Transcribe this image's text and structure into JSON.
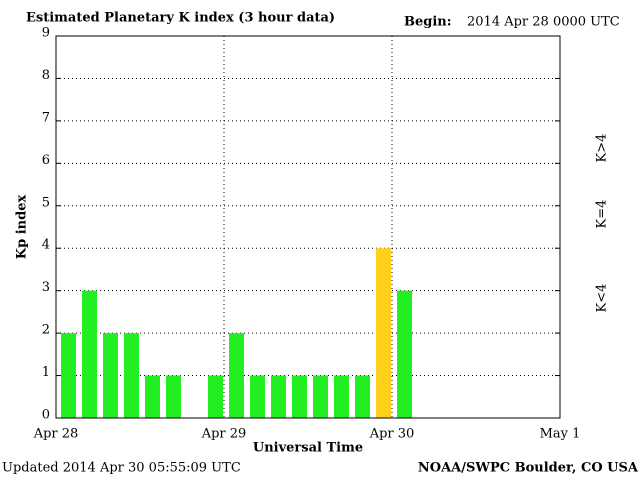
{
  "chart_data": {
    "type": "bar",
    "title": "Estimated Planetary K index (3 hour data)",
    "begin_label": "Begin:",
    "begin_value": "2014 Apr 28 0000 UTC",
    "ylabel": "Kp index",
    "xlabel": "Universal Time",
    "updated": "Updated 2014 Apr 30 05:55:09 UTC",
    "credit": "NOAA/SWPC Boulder, CO USA",
    "x": [
      0,
      3,
      6,
      9,
      12,
      15,
      21,
      24,
      27,
      30,
      33,
      36,
      39,
      42,
      45,
      48
    ],
    "values": [
      2,
      3,
      2,
      2,
      1,
      1,
      1,
      2,
      1,
      1,
      1,
      1,
      1,
      1,
      4,
      3
    ],
    "colors": [
      "#22ee22",
      "#22ee22",
      "#22ee22",
      "#22ee22",
      "#22ee22",
      "#22ee22",
      "#22ee22",
      "#22ee22",
      "#22ee22",
      "#22ee22",
      "#22ee22",
      "#22ee22",
      "#22ee22",
      "#22ee22",
      "#ffd11a",
      "#22ee22"
    ],
    "xlim": [
      0,
      72
    ],
    "xticks": [
      {
        "value": 0,
        "label": "Apr 28"
      },
      {
        "value": 24,
        "label": "Apr 29"
      },
      {
        "value": 48,
        "label": "Apr 30"
      },
      {
        "value": 72,
        "label": "May 1"
      }
    ],
    "ylim": [
      0,
      9
    ],
    "yticks": [
      0,
      1,
      2,
      3,
      4,
      5,
      6,
      7,
      8,
      9
    ],
    "grid": true,
    "legend": [
      {
        "label": "K<4",
        "color": "#22ee22"
      },
      {
        "label": "K=4",
        "color": "#ffd11a"
      },
      {
        "label": "K>4",
        "color": "#ee3322"
      }
    ]
  }
}
